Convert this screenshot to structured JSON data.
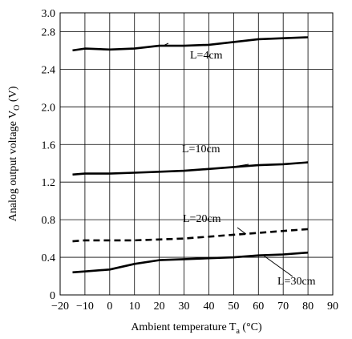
{
  "chart_data": {
    "type": "line",
    "title": "",
    "xlabel": "Ambient temperature T",
    "xlabel_sub": "a",
    "xlabel_unit": " (°C)",
    "ylabel": "Analog output voltage V",
    "ylabel_sub": "O",
    "ylabel_unit": " (V)",
    "xlim": [
      -20,
      90
    ],
    "ylim": [
      0,
      3.0
    ],
    "x_ticks": [
      -20,
      -10,
      0,
      10,
      20,
      30,
      40,
      50,
      60,
      70,
      80,
      90
    ],
    "x_tick_labels": [
      "−20",
      "−10",
      "0",
      "10",
      "20",
      "30",
      "40",
      "50",
      "60",
      "70",
      "80",
      "90"
    ],
    "y_ticks": [
      0,
      0.4,
      0.8,
      1.2,
      1.6,
      2.0,
      2.4,
      2.8,
      3.0
    ],
    "y_tick_labels": [
      "0",
      "0.4",
      "0.8",
      "1.2",
      "1.6",
      "2.0",
      "2.4",
      "2.8",
      "3.0"
    ],
    "grid": true,
    "series": [
      {
        "name": "L=4cm",
        "style": "solid",
        "color": "#000000",
        "x": [
          -15,
          -10,
          0,
          10,
          20,
          30,
          40,
          50,
          60,
          70,
          80
        ],
        "y": [
          2.6,
          2.62,
          2.61,
          2.62,
          2.65,
          2.65,
          2.66,
          2.69,
          2.72,
          2.73,
          2.74
        ]
      },
      {
        "name": "L=10cm",
        "style": "solid",
        "color": "#000000",
        "x": [
          -15,
          -10,
          0,
          10,
          20,
          30,
          40,
          50,
          60,
          70,
          80
        ],
        "y": [
          1.28,
          1.29,
          1.29,
          1.3,
          1.31,
          1.32,
          1.34,
          1.36,
          1.38,
          1.39,
          1.41
        ]
      },
      {
        "name": "L=20cm",
        "style": "dashed",
        "color": "#000000",
        "x": [
          -15,
          -10,
          0,
          10,
          20,
          30,
          40,
          50,
          60,
          70,
          80
        ],
        "y": [
          0.57,
          0.58,
          0.58,
          0.58,
          0.59,
          0.6,
          0.62,
          0.64,
          0.66,
          0.68,
          0.7
        ]
      },
      {
        "name": "L=30cm",
        "style": "solid",
        "color": "#000000",
        "x": [
          -15,
          -10,
          0,
          10,
          20,
          30,
          40,
          50,
          60,
          70,
          80
        ],
        "y": [
          0.24,
          0.25,
          0.27,
          0.33,
          0.37,
          0.38,
          0.39,
          0.4,
          0.42,
          0.43,
          0.45
        ]
      }
    ]
  }
}
